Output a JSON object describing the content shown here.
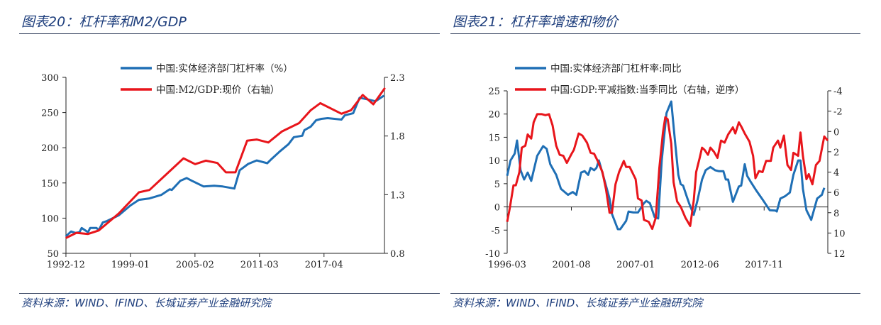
{
  "panels": [
    {
      "title": "图表20：杠杆率和M2/GDP",
      "source": "资料来源：WIND、IFIND、长城证券产业金融研究院"
    },
    {
      "title": "图表21：杠杆率增速和物价",
      "source": "资料来源：WIND、IFIND、长城证券产业金融研究院"
    }
  ],
  "chart_data": [
    {
      "type": "line",
      "x_ticks": [
        "1992-12",
        "1999-01",
        "2005-02",
        "2011-03",
        "2017-04"
      ],
      "y_left": {
        "range": [
          50,
          300
        ],
        "ticks": [
          "50",
          "100",
          "150",
          "200",
          "250",
          "300"
        ]
      },
      "y_right": {
        "range": [
          0.8,
          2.3
        ],
        "ticks": [
          "0.8",
          "1.3",
          "1.8",
          "2.3"
        ],
        "reversed": false
      },
      "grid": false,
      "legend": "top",
      "series": [
        {
          "name": "中国:实体经济部门杠杆率（%）",
          "axis": "left",
          "color": "#1f6fb5",
          "x": [
            1992.9,
            1993.4,
            1993.8,
            1994.2,
            1994.4,
            1995.0,
            1995.2,
            1995.8,
            1996.0,
            1996.4,
            1996.8,
            1997.9,
            1999.0,
            1999.8,
            2000.8,
            2001.9,
            2002.7,
            2002.9,
            2003.7,
            2004.3,
            2004.8,
            2005.9,
            2006.9,
            2007.7,
            2008.8,
            2009.3,
            2010.1,
            2010.9,
            2011.9,
            2012.3,
            2013.1,
            2013.9,
            2014.4,
            2015.2,
            2015.4,
            2016.0,
            2016.5,
            2017.0,
            2017.6,
            2018.9,
            2019.2,
            2020.0,
            2020.6,
            2021.3,
            2022.1,
            2022.9
          ],
          "y": [
            74,
            81,
            79,
            80,
            86,
            80,
            86,
            86,
            83,
            94,
            96,
            104,
            118,
            126,
            128,
            133,
            141,
            140,
            153,
            157,
            153,
            145,
            146,
            145,
            142,
            168,
            177,
            182,
            178,
            184,
            195,
            205,
            215,
            217,
            225,
            230,
            239,
            241,
            242,
            240,
            246,
            249,
            271,
            269,
            266,
            274
          ]
        },
        {
          "name": "中国:M2/GDP:现价（右轴）",
          "axis": "right",
          "color": "#e8151b",
          "x": [
            1992.9,
            1993.9,
            1995.0,
            1996.0,
            1997.9,
            1999.8,
            2000.8,
            2004.0,
            2005.1,
            2006.1,
            2007.2,
            2008.0,
            2008.9,
            2010.0,
            2010.9,
            2012.0,
            2013.3,
            2014.9,
            2016.0,
            2016.9,
            2018.9,
            2019.8,
            2020.9,
            2021.9,
            2023.0
          ],
          "y": [
            0.93,
            0.975,
            0.965,
            0.995,
            1.14,
            1.32,
            1.34,
            1.61,
            1.56,
            1.59,
            1.57,
            1.49,
            1.49,
            1.76,
            1.77,
            1.745,
            1.84,
            1.91,
            2.02,
            2.08,
            1.99,
            2.02,
            2.15,
            2.07,
            2.21
          ]
        }
      ]
    },
    {
      "type": "line",
      "x_ticks": [
        "1996-03",
        "2001-08",
        "2007-01",
        "2012-06",
        "2017-11"
      ],
      "y_left": {
        "range": [
          -10,
          25
        ],
        "ticks": [
          "-10",
          "-5",
          "0",
          "5",
          "10",
          "15",
          "20",
          "25"
        ]
      },
      "y_right": {
        "range": [
          -4,
          12
        ],
        "ticks": [
          "-4",
          "-2",
          "0",
          "2",
          "4",
          "6",
          "8",
          "10",
          "12"
        ],
        "reversed": true
      },
      "grid": false,
      "legend": "top",
      "series": [
        {
          "name": "中国:实体经济部门杠杆率:同比",
          "axis": "left",
          "color": "#1f6fb5",
          "x": [
            1996.17,
            1996.45,
            1996.81,
            1997.0,
            1997.3,
            1997.6,
            1997.9,
            1998.2,
            1998.7,
            1999.2,
            1999.5,
            1999.8,
            2000.3,
            2000.7,
            2001.3,
            2001.7,
            2002.0,
            2002.4,
            2002.7,
            2003.0,
            2003.2,
            2003.5,
            2003.7,
            2003.9,
            2004.3,
            2004.8,
            2005.0,
            2005.5,
            2005.7,
            2006.2,
            2006.4,
            2006.8,
            2007.2,
            2007.7,
            2007.9,
            2008.2,
            2008.6,
            2008.9,
            2009.2,
            2009.6,
            2010.0,
            2010.3,
            2010.6,
            2010.8,
            2011.0,
            2011.3,
            2011.5,
            2011.9,
            2012.2,
            2012.6,
            2012.9,
            2013.3,
            2013.7,
            2014.0,
            2014.4,
            2014.6,
            2014.8,
            2015.2,
            2015.7,
            2015.9,
            2016.2,
            2016.4,
            2016.7,
            2017.2,
            2017.7,
            2018.3,
            2018.8,
            2018.9,
            2019.2,
            2019.6,
            2020.0,
            2020.3,
            2020.7,
            2020.9,
            2021.1,
            2021.4,
            2021.8,
            2022.3,
            2022.7,
            2022.9
          ],
          "y": [
            6.7,
            10,
            11.5,
            14.3,
            7.9,
            5.9,
            7.4,
            5.6,
            11,
            13.1,
            12.5,
            9.2,
            6.9,
            3.9,
            2.6,
            3.2,
            2.6,
            7.4,
            7.7,
            6.9,
            8.4,
            7.9,
            8.4,
            10,
            6.4,
            1.8,
            -1.5,
            -4.8,
            -4.8,
            -3,
            -1,
            -1.2,
            -1.2,
            0.8,
            1.3,
            0.8,
            -2.2,
            -2.5,
            10,
            20.2,
            22.7,
            14.6,
            6.9,
            4.9,
            4.6,
            2.3,
            0.8,
            -1.7,
            1.3,
            5.9,
            7.9,
            8.6,
            7.9,
            7.7,
            7.7,
            5.9,
            5.9,
            1.1,
            4.4,
            4.6,
            9.2,
            6.7,
            5.4,
            3.4,
            1.6,
            -0.7,
            -0.8,
            -1,
            1.8,
            2.3,
            3.1,
            6.9,
            10,
            10,
            3.9,
            -0.7,
            -2.8,
            1.8,
            2.6,
            4.1
          ]
        },
        {
          "name": "中国:GDP:平减指数:当季同比（右轴，逆序）",
          "axis": "right",
          "color": "#e8151b",
          "x": [
            1996.17,
            1996.4,
            1996.7,
            1996.9,
            1997.2,
            1997.4,
            1997.7,
            1997.9,
            1998.2,
            1998.4,
            1998.7,
            1999.1,
            1999.4,
            1999.7,
            2000.0,
            2000.3,
            2000.6,
            2000.9,
            2001.2,
            2001.6,
            2001.8,
            2002.2,
            2002.5,
            2002.9,
            2003.2,
            2003.5,
            2003.8,
            2004.2,
            2004.5,
            2004.8,
            2005.0,
            2005.3,
            2005.6,
            2006.0,
            2006.2,
            2006.5,
            2007.0,
            2007.2,
            2007.5,
            2007.7,
            2008.1,
            2008.4,
            2008.7,
            2009.0,
            2009.3,
            2009.5,
            2009.7,
            2010.0,
            2010.2,
            2010.5,
            2010.8,
            2011.2,
            2011.6,
            2011.9,
            2012.1,
            2012.4,
            2012.6,
            2012.8,
            2013.1,
            2013.3,
            2013.6,
            2013.9,
            2014.2,
            2014.5,
            2014.8,
            2015.2,
            2015.4,
            2015.7,
            2015.9,
            2016.2,
            2016.6,
            2016.9,
            2017.1,
            2017.4,
            2017.7,
            2018.0,
            2018.4,
            2018.6,
            2019.0,
            2019.2,
            2019.5,
            2019.8,
            2020.1,
            2020.3,
            2020.7,
            2020.9,
            2021.1,
            2021.4,
            2021.6,
            2021.9,
            2022.2,
            2022.5,
            2022.9,
            2023.2
          ],
          "y": [
            8.9,
            7.5,
            5.3,
            5.3,
            4.0,
            1.6,
            1.4,
            0.3,
            0.7,
            -0.9,
            -1.7,
            -1.7,
            -1.6,
            -1.7,
            -0.6,
            1.4,
            2.3,
            2.4,
            3.1,
            2.2,
            1.8,
            0.2,
            0.4,
            1.1,
            2.1,
            2.2,
            2.9,
            4.0,
            5.7,
            8.0,
            8.0,
            5.2,
            4.0,
            2.9,
            3.5,
            3.5,
            4.7,
            6.6,
            6.8,
            8.7,
            8.9,
            9.6,
            8.5,
            3.6,
            0.1,
            -1.4,
            -1.2,
            1.2,
            5.0,
            6.9,
            7.4,
            8.5,
            9.3,
            6.8,
            4.0,
            2.6,
            1.6,
            1.8,
            2.3,
            1.6,
            2.0,
            2.6,
            0.9,
            1.1,
            0.3,
            -0.4,
            0.2,
            -0.9,
            -0.5,
            0.2,
            1.0,
            2.4,
            4.6,
            3.9,
            4.0,
            2.9,
            2.9,
            1.6,
            0.9,
            1.6,
            0.4,
            3.3,
            3.8,
            2.1,
            2.4,
            0.1,
            2.4,
            4.7,
            4.2,
            5.2,
            3.3,
            2.9,
            0.5,
            0.9
          ]
        }
      ]
    }
  ]
}
